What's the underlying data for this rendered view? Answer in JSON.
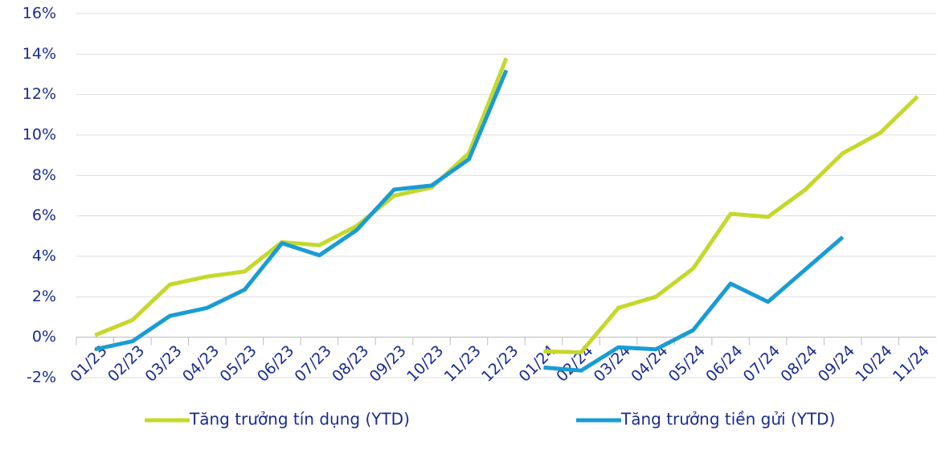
{
  "chart_data": {
    "type": "line",
    "categories": [
      "01/23",
      "02/23",
      "03/23",
      "04/23",
      "05/23",
      "06/23",
      "07/23",
      "08/23",
      "09/23",
      "10/23",
      "11/23",
      "12/23",
      "01/24",
      "02/24",
      "03/24",
      "04/24",
      "05/24",
      "06/24",
      "07/24",
      "08/24",
      "09/24",
      "10/24",
      "11/24"
    ],
    "series": [
      {
        "name": "Tăng trưởng tín dụng (YTD)",
        "color": "#c5d82b",
        "values": [
          0.1,
          0.85,
          2.6,
          3.0,
          3.25,
          4.7,
          4.55,
          5.5,
          7.0,
          7.4,
          9.1,
          13.8,
          -0.7,
          -0.75,
          1.45,
          2.0,
          3.4,
          6.1,
          5.95,
          7.3,
          9.1,
          10.1,
          11.9
        ]
      },
      {
        "name": "Tăng trưởng tiền gửi (YTD)",
        "color": "#1a9cd3",
        "values": [
          -0.6,
          -0.2,
          1.05,
          1.45,
          2.35,
          4.65,
          4.05,
          5.3,
          7.3,
          7.5,
          8.8,
          13.2,
          -1.5,
          -1.65,
          -0.5,
          -0.6,
          0.35,
          2.65,
          1.75,
          3.35,
          4.95,
          null,
          null
        ]
      }
    ],
    "ylim": [
      -2,
      16
    ],
    "yticks": [
      {
        "value": -2,
        "label": "-2%"
      },
      {
        "value": 0,
        "label": "0%"
      },
      {
        "value": 2,
        "label": "2%"
      },
      {
        "value": 4,
        "label": "4%"
      },
      {
        "value": 6,
        "label": "6%"
      },
      {
        "value": 8,
        "label": "8%"
      },
      {
        "value": 10,
        "label": "10%"
      },
      {
        "value": 12,
        "label": "12%"
      },
      {
        "value": 14,
        "label": "14%"
      },
      {
        "value": 16,
        "label": "16%"
      }
    ],
    "grid": true,
    "legend": "bottom"
  }
}
